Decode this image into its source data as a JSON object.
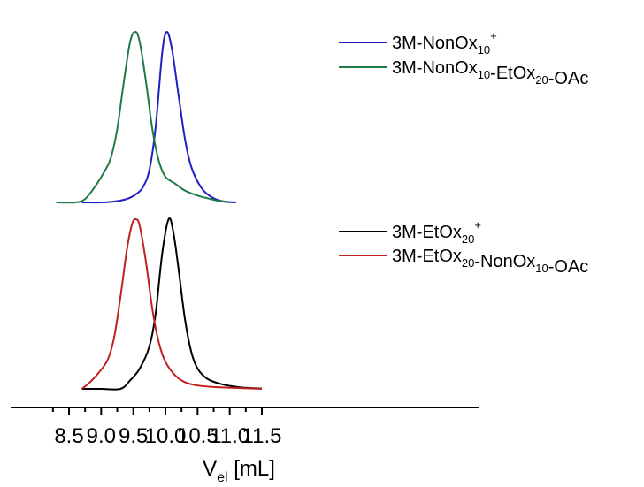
{
  "chart_data": {
    "type": "line",
    "xlabel_main": "V",
    "xlabel_sub": "el",
    "xlabel_unit": " [mL]",
    "xlim": [
      8.3,
      11.5
    ],
    "xticks": [
      "8.5",
      "9.0",
      "9.5",
      "10.0",
      "10.5",
      "11.0",
      "11.5"
    ],
    "xtick_values": [
      8.5,
      9.0,
      9.5,
      10.0,
      10.5,
      11.0,
      11.5
    ],
    "yaxis": "none",
    "panels": [
      {
        "name": "top",
        "series": [
          {
            "name": "3M-NonOx10+",
            "legend": [
              [
                "3M-NonOx",
                ""
              ],
              [
                "10",
                "sub"
              ],
              [
                "+",
                "sup"
              ]
            ],
            "color": "#2020c0",
            "points": [
              [
                8.7,
                0.0
              ],
              [
                9.0,
                0.0
              ],
              [
                9.2,
                0.005
              ],
              [
                9.4,
                0.02
              ],
              [
                9.55,
                0.05
              ],
              [
                9.65,
                0.09
              ],
              [
                9.75,
                0.19
              ],
              [
                9.85,
                0.45
              ],
              [
                9.95,
                0.88
              ],
              [
                10.02,
                1.0
              ],
              [
                10.1,
                0.9
              ],
              [
                10.2,
                0.64
              ],
              [
                10.3,
                0.38
              ],
              [
                10.4,
                0.21
              ],
              [
                10.55,
                0.09
              ],
              [
                10.7,
                0.035
              ],
              [
                10.85,
                0.01
              ],
              [
                11.0,
                0.002
              ],
              [
                11.1,
                0.0
              ]
            ]
          },
          {
            "name": "3M-NonOx10-EtOx20-OAc",
            "legend": [
              [
                "3M-NonOx",
                ""
              ],
              [
                "10",
                "sub"
              ],
              [
                "-EtOx",
                ""
              ],
              [
                "20",
                "sub"
              ],
              [
                "-OAc",
                ""
              ]
            ],
            "color": "#1e7a46",
            "points": [
              [
                8.3,
                0.0
              ],
              [
                8.6,
                0.0
              ],
              [
                8.75,
                0.02
              ],
              [
                8.9,
                0.09
              ],
              [
                9.05,
                0.18
              ],
              [
                9.15,
                0.26
              ],
              [
                9.25,
                0.43
              ],
              [
                9.35,
                0.7
              ],
              [
                9.45,
                0.94
              ],
              [
                9.53,
                1.0
              ],
              [
                9.6,
                0.94
              ],
              [
                9.7,
                0.7
              ],
              [
                9.8,
                0.42
              ],
              [
                9.9,
                0.24
              ],
              [
                10.0,
                0.15
              ],
              [
                10.15,
                0.11
              ],
              [
                10.3,
                0.07
              ],
              [
                10.5,
                0.04
              ],
              [
                10.7,
                0.02
              ],
              [
                10.85,
                0.008
              ],
              [
                11.0,
                0.0
              ]
            ]
          }
        ]
      },
      {
        "name": "bottom",
        "series": [
          {
            "name": "3M-EtOx20+",
            "legend": [
              [
                "3M-EtOx",
                ""
              ],
              [
                "20",
                "sub"
              ],
              [
                "+",
                "sup"
              ]
            ],
            "color": "#000000",
            "points": [
              [
                8.7,
                0.0
              ],
              [
                9.0,
                0.0
              ],
              [
                9.3,
                0.0
              ],
              [
                9.45,
                0.05
              ],
              [
                9.6,
                0.12
              ],
              [
                9.75,
                0.25
              ],
              [
                9.85,
                0.45
              ],
              [
                9.95,
                0.8
              ],
              [
                10.05,
                1.0
              ],
              [
                10.12,
                0.93
              ],
              [
                10.2,
                0.72
              ],
              [
                10.3,
                0.42
              ],
              [
                10.4,
                0.22
              ],
              [
                10.5,
                0.12
              ],
              [
                10.65,
                0.06
              ],
              [
                10.85,
                0.03
              ],
              [
                11.1,
                0.012
              ],
              [
                11.3,
                0.005
              ],
              [
                11.5,
                0.002
              ]
            ]
          },
          {
            "name": "3M-EtOx20-NonOx10-OAc",
            "legend": [
              [
                "3M-EtOx",
                ""
              ],
              [
                "20",
                "sub"
              ],
              [
                "-NonOx",
                ""
              ],
              [
                "10",
                "sub"
              ],
              [
                "-OAc",
                ""
              ]
            ],
            "color": "#c0201e",
            "points": [
              [
                8.7,
                0.0
              ],
              [
                8.8,
                0.03
              ],
              [
                8.95,
                0.09
              ],
              [
                9.1,
                0.17
              ],
              [
                9.2,
                0.3
              ],
              [
                9.3,
                0.54
              ],
              [
                9.4,
                0.82
              ],
              [
                9.48,
                0.97
              ],
              [
                9.54,
                1.0
              ],
              [
                9.6,
                0.96
              ],
              [
                9.7,
                0.74
              ],
              [
                9.8,
                0.46
              ],
              [
                9.9,
                0.27
              ],
              [
                10.0,
                0.16
              ],
              [
                10.15,
                0.08
              ],
              [
                10.3,
                0.04
              ],
              [
                10.5,
                0.02
              ],
              [
                10.8,
                0.01
              ],
              [
                11.5,
                0.0
              ]
            ]
          }
        ]
      }
    ]
  }
}
